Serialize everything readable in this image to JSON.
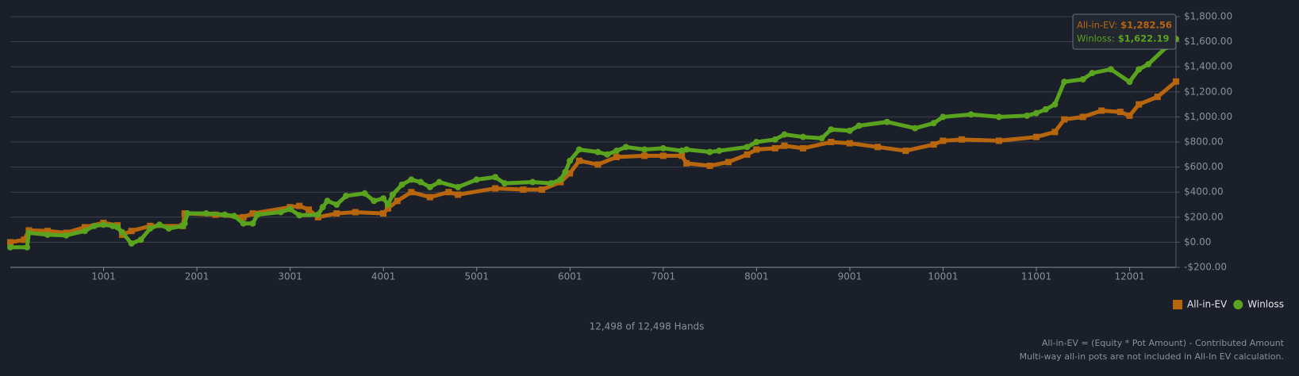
{
  "chart_data": {
    "type": "line",
    "xlim": [
      1,
      12498
    ],
    "xticks": [
      1001,
      2001,
      3001,
      4001,
      5001,
      6001,
      7001,
      8001,
      9001,
      10001,
      11001,
      12001
    ],
    "ylim": [
      -200,
      1800
    ],
    "yticks": [
      {
        "value": -200,
        "label": "-$200.00"
      },
      {
        "value": 0,
        "label": "$0.00"
      },
      {
        "value": 200,
        "label": "$200.00"
      },
      {
        "value": 400,
        "label": "$400.00"
      },
      {
        "value": 600,
        "label": "$600.00"
      },
      {
        "value": 800,
        "label": "$800.00"
      },
      {
        "value": 1000,
        "label": "$1,000.00"
      },
      {
        "value": 1200,
        "label": "$1,200.00"
      },
      {
        "value": 1400,
        "label": "$1,400.00"
      },
      {
        "value": 1600,
        "label": "$1,600.00"
      },
      {
        "value": 1800,
        "label": "$1,800.00"
      }
    ],
    "grid": true,
    "legend": "bottom-right",
    "series": [
      {
        "name": "All-in-EV",
        "color": "#b8660e",
        "marker": "square",
        "x": [
          1,
          150,
          200,
          400,
          600,
          800,
          1000,
          1150,
          1200,
          1300,
          1500,
          1850,
          1870,
          2200,
          2500,
          2600,
          3000,
          3100,
          3200,
          3300,
          3500,
          3700,
          4000,
          4050,
          4150,
          4300,
          4500,
          4700,
          4800,
          5200,
          5500,
          5700,
          5900,
          6000,
          6100,
          6300,
          6500,
          6800,
          7000,
          7200,
          7250,
          7500,
          7700,
          7900,
          8000,
          8200,
          8300,
          8500,
          8800,
          9000,
          9300,
          9600,
          9900,
          10000,
          10200,
          10600,
          11000,
          11200,
          11300,
          11500,
          11700,
          11900,
          12000,
          12100,
          12300,
          12498
        ],
        "values": [
          0,
          20,
          95,
          90,
          75,
          120,
          155,
          135,
          60,
          90,
          130,
          130,
          230,
          220,
          200,
          230,
          280,
          290,
          260,
          200,
          230,
          240,
          230,
          270,
          330,
          400,
          360,
          400,
          380,
          430,
          420,
          420,
          480,
          550,
          650,
          620,
          680,
          690,
          690,
          690,
          630,
          610,
          640,
          700,
          740,
          750,
          770,
          750,
          800,
          790,
          760,
          730,
          780,
          810,
          820,
          810,
          840,
          880,
          980,
          1000,
          1050,
          1040,
          1010,
          1100,
          1160,
          1282.56
        ]
      },
      {
        "name": "Winloss",
        "color": "#5aa31e",
        "marker": "circle",
        "x": [
          1,
          180,
          200,
          400,
          600,
          800,
          900,
          1000,
          1100,
          1150,
          1200,
          1300,
          1400,
          1500,
          1600,
          1700,
          1850,
          1870,
          1900,
          2100,
          2300,
          2400,
          2500,
          2600,
          2650,
          2900,
          3000,
          3100,
          3300,
          3350,
          3400,
          3500,
          3600,
          3800,
          3900,
          4000,
          4050,
          4100,
          4200,
          4300,
          4400,
          4500,
          4600,
          4800,
          5000,
          5200,
          5300,
          5600,
          5800,
          5900,
          5950,
          6000,
          6100,
          6300,
          6400,
          6500,
          6600,
          6800,
          7000,
          7200,
          7250,
          7500,
          7600,
          7900,
          8000,
          8200,
          8300,
          8500,
          8700,
          8800,
          9000,
          9100,
          9400,
          9700,
          9900,
          10000,
          10300,
          10600,
          10900,
          11000,
          11100,
          11200,
          11300,
          11500,
          11600,
          11800,
          12000,
          12100,
          12200,
          12400,
          12498
        ],
        "values": [
          -40,
          -40,
          75,
          60,
          55,
          90,
          130,
          140,
          130,
          120,
          80,
          -10,
          20,
          110,
          140,
          110,
          130,
          150,
          230,
          230,
          220,
          210,
          150,
          150,
          220,
          240,
          265,
          215,
          220,
          280,
          330,
          300,
          370,
          390,
          330,
          350,
          300,
          380,
          460,
          500,
          480,
          440,
          480,
          440,
          500,
          520,
          470,
          480,
          470,
          500,
          560,
          650,
          740,
          720,
          700,
          730,
          760,
          740,
          750,
          730,
          740,
          720,
          730,
          760,
          800,
          820,
          860,
          840,
          830,
          900,
          890,
          930,
          960,
          910,
          950,
          1000,
          1020,
          1000,
          1010,
          1030,
          1060,
          1100,
          1280,
          1300,
          1350,
          1380,
          1280,
          1380,
          1420,
          1560,
          1622.19
        ]
      }
    ],
    "tooltip": [
      {
        "name": "All-in-EV:",
        "label": "$1,282.56"
      },
      {
        "name": "Winloss:",
        "label": "$1,622.19"
      }
    ],
    "hands_label": "12,498 of 12,498 Hands",
    "notes": [
      "All-in-EV = (Equity * Pot Amount) - Contributed Amount",
      "Multi-way all-in pots are not included in All-In EV calculation."
    ]
  }
}
